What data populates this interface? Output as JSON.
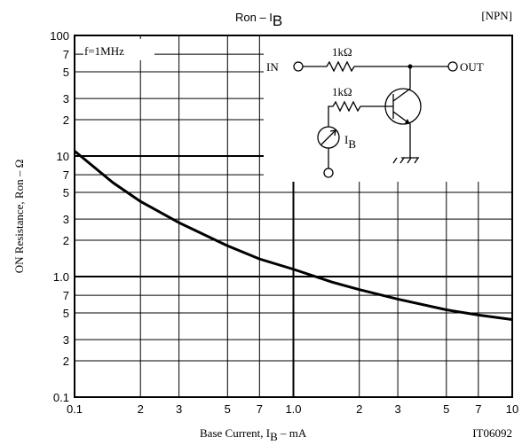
{
  "chart_data": {
    "type": "line",
    "title": {
      "main": "Ron  –  I",
      "sub": "B"
    },
    "tag": "[NPN]",
    "figure_id": "IT06092",
    "note": "f=1MHz",
    "x_label": {
      "main": "Base Current, I",
      "sub": "B",
      "tail": "  –  mA"
    },
    "y_label": "ON Resistance, Ron  –  Ω",
    "xscale": "log",
    "yscale": "log",
    "grid": true,
    "xlim": [
      0.1,
      10
    ],
    "ylim": [
      0.1,
      100
    ],
    "xticks": [
      0.1,
      {
        "value": 0.2,
        "label": "2"
      },
      {
        "value": 0.3,
        "label": "3"
      },
      {
        "value": 0.5,
        "label": "5"
      },
      {
        "value": 0.7,
        "label": "7"
      },
      {
        "value": 1,
        "label": "1.0"
      },
      {
        "value": 2,
        "label": "2"
      },
      {
        "value": 3,
        "label": "3"
      },
      {
        "value": 5,
        "label": "5"
      },
      {
        "value": 7,
        "label": "7"
      },
      10
    ],
    "yticks": [
      0.1,
      {
        "value": 0.2,
        "label": "2"
      },
      {
        "value": 0.3,
        "label": "3"
      },
      {
        "value": 0.5,
        "label": "5"
      },
      {
        "value": 0.7,
        "label": "7"
      },
      {
        "value": 1,
        "label": "1.0"
      },
      {
        "value": 2,
        "label": "2"
      },
      {
        "value": 3,
        "label": "3"
      },
      {
        "value": 5,
        "label": "5"
      },
      {
        "value": 7,
        "label": "7"
      },
      10,
      {
        "value": 20,
        "label": "2"
      },
      {
        "value": 30,
        "label": "3"
      },
      {
        "value": 50,
        "label": "5"
      },
      {
        "value": 70,
        "label": "7"
      },
      100
    ],
    "series": [
      {
        "color": "#000000",
        "x": [
          0.1,
          0.15,
          0.2,
          0.3,
          0.5,
          0.7,
          1,
          1.5,
          2,
          3,
          5,
          7,
          10
        ],
        "values": [
          11,
          6,
          4.2,
          2.8,
          1.8,
          1.4,
          1.15,
          0.9,
          0.78,
          0.65,
          0.53,
          0.48,
          0.44
        ]
      }
    ],
    "circuit": {
      "in": "IN",
      "out": "OUT",
      "r1": "1kΩ",
      "r2": "1kΩ",
      "meter": "I",
      "meter_sub": "B"
    }
  }
}
